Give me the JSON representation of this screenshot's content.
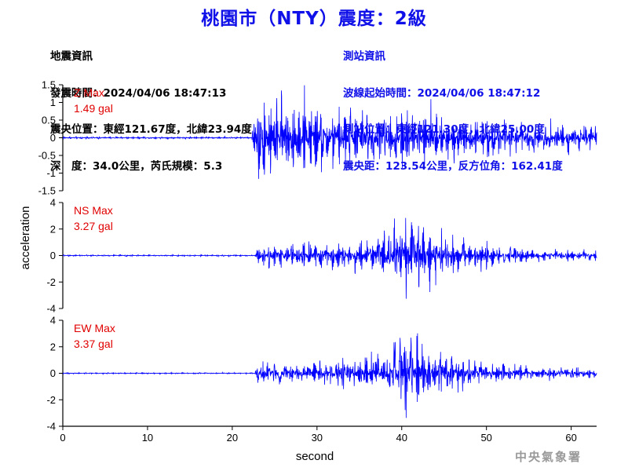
{
  "title": "桃園市（NTY）震度：2級",
  "earthquake_info": {
    "heading": "地震資訊",
    "origin_time": "發震時間：2024/04/06 18:47:13",
    "epicenter": "震央位置：東經121.67度，北緯23.94度",
    "depth_magnitude": "深　度：34.0公里，芮氏規模：5.3"
  },
  "station_info": {
    "heading": "測站資訊",
    "wave_onset": "波線起始時間：2024/04/06 18:47:12",
    "station_location": "測站位置：東經121.30度，北緯25.00度",
    "distance_azimuth": "震央距：123.54公里，反方位角：162.41度"
  },
  "footer": "中央氣象署",
  "chart_data": {
    "type": "line",
    "xlabel": "second",
    "ylabel": "acceleration",
    "xlim": [
      0,
      63
    ],
    "xticks": [
      0,
      10,
      20,
      30,
      40,
      50,
      60
    ],
    "line_color": "#0000ff",
    "label_color": "#e00000",
    "panels": [
      {
        "name": "Z",
        "max_label": "Z Max",
        "max_value": "1.49 gal",
        "ylim": [
          -1.5,
          1.5
        ],
        "yticks": [
          "1.5",
          "1",
          "0.5",
          "0",
          "-0.5",
          "-1",
          "-1.5"
        ],
        "ytick_values": [
          1.5,
          1,
          0.5,
          0,
          -0.5,
          -1,
          -1.5
        ],
        "peak": 1.49,
        "onset_s": 22.5,
        "envelope": [
          [
            0,
            0.03
          ],
          [
            22.3,
            0.03
          ],
          [
            22.8,
            1.2
          ],
          [
            24,
            1.35
          ],
          [
            26,
            1.1
          ],
          [
            28,
            1.25
          ],
          [
            30,
            1.0
          ],
          [
            32,
            0.85
          ],
          [
            35,
            0.8
          ],
          [
            38,
            0.75
          ],
          [
            40,
            0.85
          ],
          [
            41,
            0.95
          ],
          [
            44,
            0.8
          ],
          [
            48,
            0.55
          ],
          [
            52,
            0.5
          ],
          [
            56,
            0.45
          ],
          [
            60,
            0.4
          ],
          [
            63,
            0.38
          ]
        ]
      },
      {
        "name": "NS",
        "max_label": "NS Max",
        "max_value": "3.27 gal",
        "ylim": [
          -4,
          4
        ],
        "yticks": [
          "4",
          "2",
          "0",
          "-2",
          "-4"
        ],
        "ytick_values": [
          4,
          2,
          0,
          -2,
          -4
        ],
        "peak": 3.27,
        "onset_s": 22.8,
        "envelope": [
          [
            0,
            0.05
          ],
          [
            22.6,
            0.05
          ],
          [
            23,
            0.7
          ],
          [
            25,
            0.85
          ],
          [
            28,
            0.8
          ],
          [
            32,
            0.9
          ],
          [
            36,
            1.1
          ],
          [
            38,
            2.0
          ],
          [
            39,
            2.6
          ],
          [
            40,
            3.2
          ],
          [
            41,
            2.9
          ],
          [
            42,
            2.4
          ],
          [
            45,
            1.6
          ],
          [
            48,
            1.1
          ],
          [
            52,
            0.7
          ],
          [
            56,
            0.45
          ],
          [
            60,
            0.35
          ],
          [
            63,
            0.3
          ]
        ]
      },
      {
        "name": "EW",
        "max_label": "EW Max",
        "max_value": "3.37 gal",
        "ylim": [
          -4,
          4
        ],
        "yticks": [
          "4",
          "2",
          "0",
          "-2",
          "-4"
        ],
        "ytick_values": [
          4,
          2,
          0,
          -2,
          -4
        ],
        "peak": 3.37,
        "onset_s": 22.8,
        "envelope": [
          [
            0,
            0.05
          ],
          [
            22.6,
            0.05
          ],
          [
            23,
            0.8
          ],
          [
            25,
            0.9
          ],
          [
            30,
            0.95
          ],
          [
            34,
            1.1
          ],
          [
            37,
            1.6
          ],
          [
            39,
            2.4
          ],
          [
            40,
            3.3
          ],
          [
            41,
            3.0
          ],
          [
            43,
            2.4
          ],
          [
            46,
            1.5
          ],
          [
            50,
            1.0
          ],
          [
            55,
            0.6
          ],
          [
            60,
            0.45
          ],
          [
            63,
            0.4
          ]
        ]
      }
    ]
  }
}
